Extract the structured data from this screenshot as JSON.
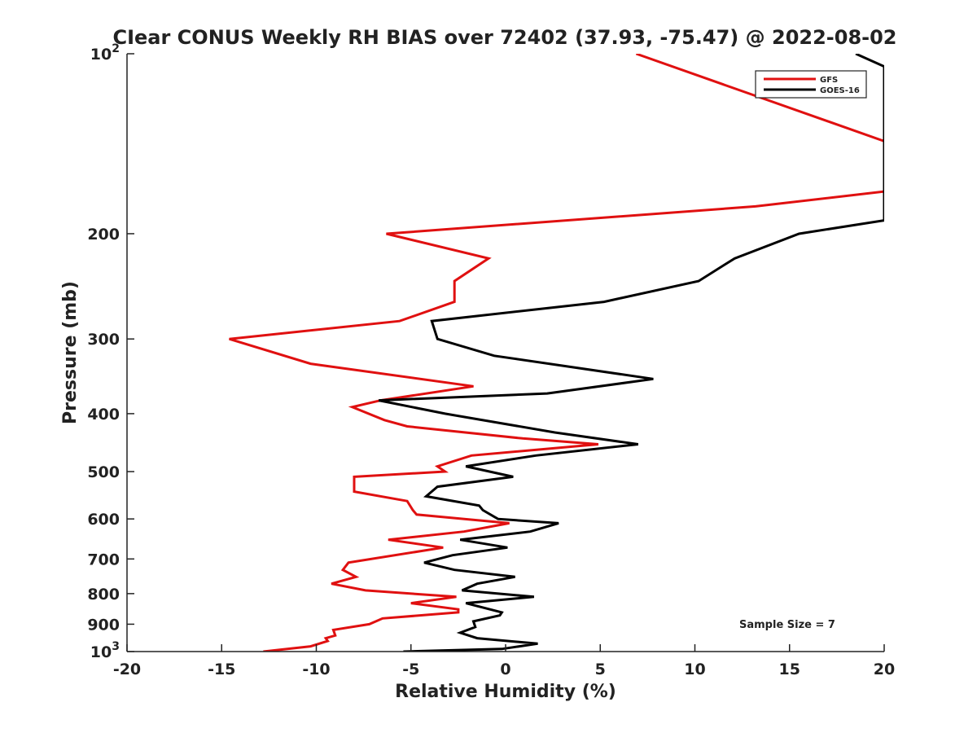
{
  "chart_data": {
    "type": "line",
    "title": "CIear CONUS Weekly RH BIAS over 72402 (37.93, -75.47) @ 2022-08-02",
    "xlabel": "Relative Humidity (%)",
    "ylabel": "Pressure (mb)",
    "xlim": [
      -20,
      20
    ],
    "ylim": [
      100,
      1000
    ],
    "y_scale": "log",
    "y_reversed": true,
    "xticks": [
      -20,
      -15,
      -10,
      -5,
      0,
      5,
      10,
      15,
      20
    ],
    "xtick_labels": [
      "-20",
      "-15",
      "-10",
      "-5",
      "0",
      "5",
      "10",
      "15",
      "20"
    ],
    "yticks": [
      {
        "value": 100,
        "base": "10",
        "exp": "2"
      },
      {
        "value": 200,
        "label": "200"
      },
      {
        "value": 300,
        "label": "300"
      },
      {
        "value": 400,
        "label": "400"
      },
      {
        "value": 500,
        "label": "500"
      },
      {
        "value": 600,
        "label": "600"
      },
      {
        "value": 700,
        "label": "700"
      },
      {
        "value": 800,
        "label": "800"
      },
      {
        "value": 900,
        "label": "900"
      },
      {
        "value": 1000,
        "base": "10",
        "exp": "3"
      }
    ],
    "legend_position": "top-right",
    "annotation": "Sample Size = 7",
    "series": [
      {
        "name": "GFS",
        "color": "#e01010",
        "points": [
          [
            6.9,
            100
          ],
          [
            20.0,
            140
          ],
          [
            20.0,
            170
          ],
          [
            13.2,
            180
          ],
          [
            -6.3,
            200
          ],
          [
            -0.9,
            220
          ],
          [
            -2.7,
            240
          ],
          [
            -2.7,
            260
          ],
          [
            -5.6,
            280
          ],
          [
            -14.6,
            300
          ],
          [
            -10.3,
            330
          ],
          [
            -1.7,
            360
          ],
          [
            -6.6,
            380
          ],
          [
            -8.1,
            390
          ],
          [
            -6.4,
            410
          ],
          [
            -5.2,
            420
          ],
          [
            0.9,
            440
          ],
          [
            4.9,
            450
          ],
          [
            -1.8,
            470
          ],
          [
            -3.6,
            490
          ],
          [
            -3.2,
            500
          ],
          [
            -8.0,
            510
          ],
          [
            -8.0,
            540
          ],
          [
            -5.2,
            560
          ],
          [
            -4.9,
            580
          ],
          [
            -4.7,
            590
          ],
          [
            0.2,
            610
          ],
          [
            -2.2,
            630
          ],
          [
            -6.2,
            650
          ],
          [
            -3.3,
            670
          ],
          [
            -8.3,
            710
          ],
          [
            -8.6,
            730
          ],
          [
            -7.9,
            750
          ],
          [
            -9.2,
            770
          ],
          [
            -7.4,
            790
          ],
          [
            -2.6,
            810
          ],
          [
            -5.0,
            830
          ],
          [
            -2.5,
            850
          ],
          [
            -2.5,
            860
          ],
          [
            -6.5,
            880
          ],
          [
            -7.2,
            900
          ],
          [
            -9.1,
            920
          ],
          [
            -9.0,
            940
          ],
          [
            -9.5,
            950
          ],
          [
            -9.4,
            960
          ],
          [
            -10.3,
            980
          ],
          [
            -12.8,
            1000
          ]
        ]
      },
      {
        "name": "GOES-16",
        "color": "#000000",
        "points": [
          [
            18.5,
            100
          ],
          [
            20.0,
            105
          ],
          [
            20.0,
            190
          ],
          [
            15.5,
            200
          ],
          [
            12.1,
            220
          ],
          [
            10.2,
            240
          ],
          [
            5.2,
            260
          ],
          [
            -3.9,
            280
          ],
          [
            -3.6,
            300
          ],
          [
            -0.6,
            320
          ],
          [
            7.8,
            350
          ],
          [
            2.2,
            370
          ],
          [
            -6.7,
            380
          ],
          [
            -3.2,
            400
          ],
          [
            2.6,
            430
          ],
          [
            7.0,
            450
          ],
          [
            1.6,
            470
          ],
          [
            -2.1,
            490
          ],
          [
            0.4,
            510
          ],
          [
            -3.6,
            530
          ],
          [
            -4.2,
            550
          ],
          [
            -1.4,
            570
          ],
          [
            -1.2,
            580
          ],
          [
            -0.4,
            600
          ],
          [
            2.8,
            610
          ],
          [
            1.3,
            630
          ],
          [
            -2.4,
            650
          ],
          [
            0.1,
            670
          ],
          [
            -2.8,
            690
          ],
          [
            -4.3,
            710
          ],
          [
            -2.7,
            730
          ],
          [
            0.5,
            750
          ],
          [
            -1.5,
            770
          ],
          [
            -2.3,
            790
          ],
          [
            1.5,
            810
          ],
          [
            -2.1,
            830
          ],
          [
            -0.2,
            860
          ],
          [
            -0.3,
            870
          ],
          [
            -1.7,
            890
          ],
          [
            -1.6,
            910
          ],
          [
            -2.4,
            930
          ],
          [
            -1.5,
            950
          ],
          [
            1.7,
            970
          ],
          [
            -0.2,
            990
          ],
          [
            -5.4,
            1000
          ]
        ]
      }
    ]
  }
}
